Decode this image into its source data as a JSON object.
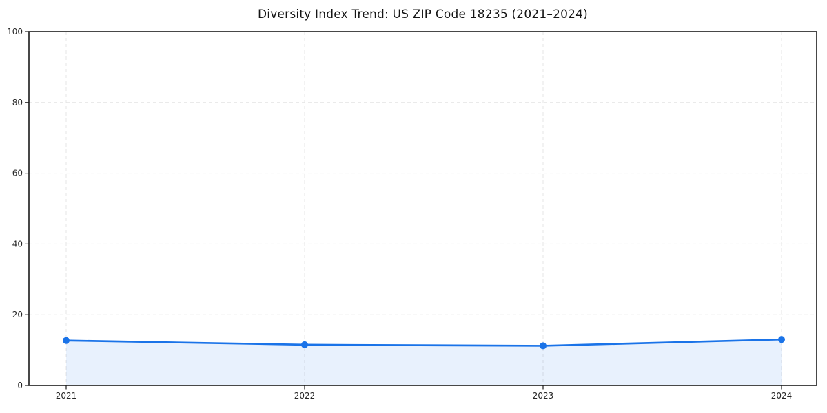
{
  "chart_data": {
    "type": "area",
    "title": "Diversity Index Trend: US ZIP Code 18235 (2021–2024)",
    "x": [
      2021,
      2022,
      2023,
      2024
    ],
    "xtick_labels": [
      "2021",
      "2022",
      "2023",
      "2024"
    ],
    "values": [
      12.7,
      11.5,
      11.2,
      13.0
    ],
    "ylim": [
      0,
      100
    ],
    "yticks": [
      0,
      20,
      40,
      60,
      80,
      100
    ],
    "grid": "dashed-both-axes",
    "legend": "none",
    "colors": {
      "line": "#1a73e8",
      "marker": "#1a73e8",
      "fill": "rgba(26,115,232,0.10)",
      "grid": "#e4e4e4",
      "spine": "#1a1a1a",
      "tick_text": "#262626",
      "background": "#ffffff"
    }
  }
}
